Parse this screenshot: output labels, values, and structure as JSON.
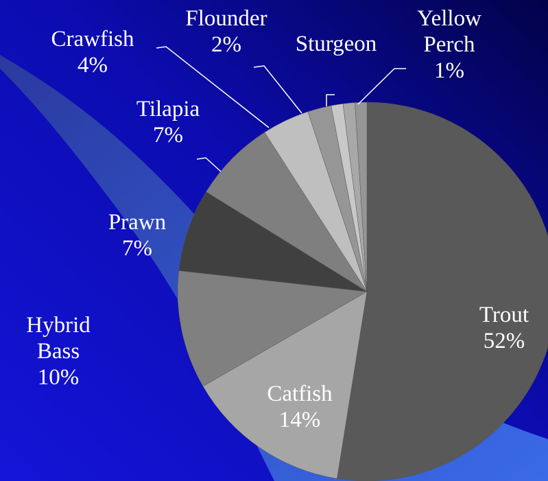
{
  "chart_data": {
    "type": "pie",
    "categories": [
      "Trout",
      "Catfish",
      "Hybrid Bass",
      "Prawn",
      "Tilapia",
      "Crawfish",
      "Flounder",
      "Sturgeon",
      null,
      "Yellow Perch"
    ],
    "values": [
      52,
      14,
      10,
      7,
      7,
      4,
      2,
      1,
      1,
      1
    ],
    "value_labels": [
      "52%",
      "14%",
      "10%",
      "7%",
      "7%",
      "4%",
      "2%",
      null,
      null,
      "1%"
    ],
    "colors": [
      "#595959",
      "#a6a6a6",
      "#808080",
      "#404040",
      "#7f7f7f",
      "#bfbfbf",
      "#969696",
      "#c8c8c8",
      "#a8a8a8",
      "#969696"
    ]
  }
}
